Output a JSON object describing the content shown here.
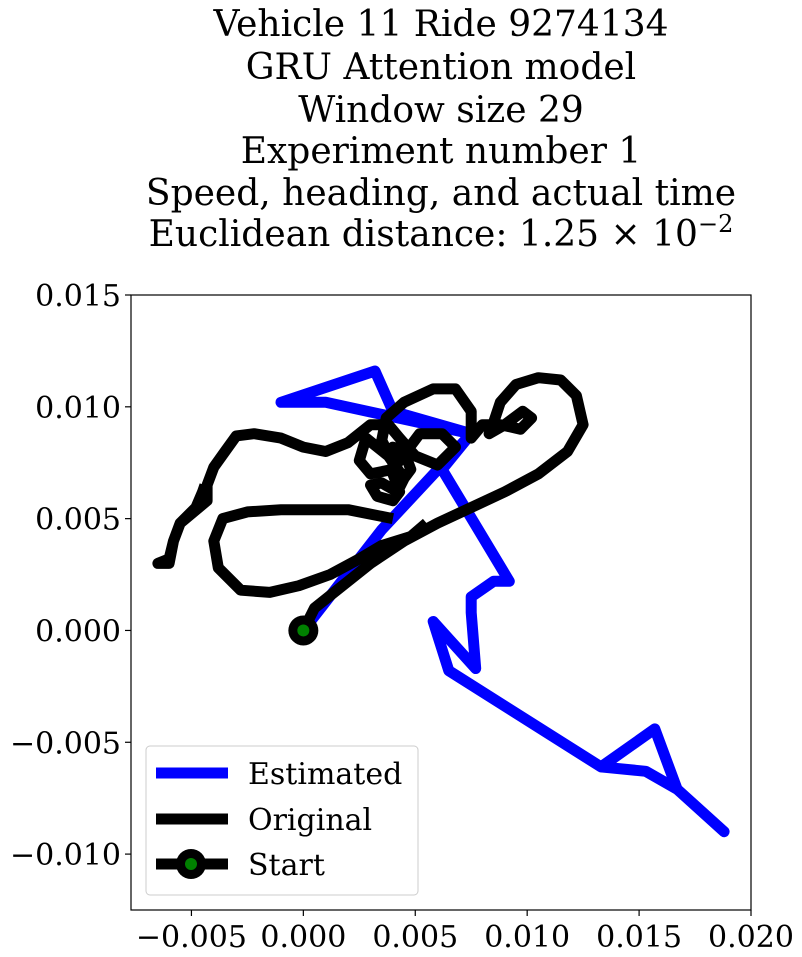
{
  "chart_data": {
    "type": "line",
    "title_lines": [
      "Vehicle 11 Ride 9274134",
      "GRU Attention model",
      "Window size 29",
      "Experiment number 1",
      "Speed, heading, and actual time",
      "Euclidean distance: 1.25 × 10"
    ],
    "title_exponent": "−2",
    "xlabel": "",
    "ylabel": "",
    "xlim": [
      -0.0077,
      0.02
    ],
    "ylim": [
      -0.0125,
      0.015
    ],
    "x_ticks": [
      -0.005,
      0.0,
      0.005,
      0.01,
      0.015,
      0.02
    ],
    "x_tick_labels": [
      "−0.005",
      "0.000",
      "0.005",
      "0.010",
      "0.015",
      "0.020"
    ],
    "y_ticks": [
      -0.01,
      -0.005,
      0.0,
      0.005,
      0.01,
      0.015
    ],
    "y_tick_labels": [
      "−0.010",
      "−0.005",
      "0.000",
      "0.005",
      "0.010",
      "0.015"
    ],
    "grid": false,
    "legend_position": "bottom-left",
    "series": [
      {
        "name": "Estimated",
        "color": "#0000ff",
        "points": [
          [
            0.0,
            0.0
          ],
          [
            0.0035,
            0.0045
          ],
          [
            0.0075,
            0.0088
          ],
          [
            0.001,
            0.0102
          ],
          [
            -0.001,
            0.0102
          ],
          [
            0.0032,
            0.0116
          ],
          [
            0.004,
            0.0098
          ],
          [
            0.0075,
            0.0088
          ],
          [
            0.0062,
            0.0072
          ],
          [
            0.0092,
            0.0022
          ],
          [
            0.0085,
            0.0022
          ],
          [
            0.0075,
            0.0015
          ],
          [
            0.0075,
            0.0008
          ],
          [
            0.0077,
            -0.0017
          ],
          [
            0.0058,
            0.0004
          ],
          [
            0.0065,
            -0.0018
          ],
          [
            0.0133,
            -0.0061
          ],
          [
            0.0157,
            -0.0044
          ],
          [
            0.0167,
            -0.0071
          ],
          [
            0.0188,
            -0.009
          ],
          [
            0.0167,
            -0.0071
          ],
          [
            0.0153,
            -0.0063
          ],
          [
            0.0133,
            -0.0061
          ]
        ]
      },
      {
        "name": "Original",
        "color": "#000000",
        "points": [
          [
            0.0,
            0.0
          ],
          [
            0.0005,
            0.001
          ],
          [
            0.0015,
            0.0018
          ],
          [
            0.003,
            0.003
          ],
          [
            0.0045,
            0.004
          ],
          [
            0.006,
            0.0048
          ],
          [
            0.0075,
            0.0055
          ],
          [
            0.009,
            0.0062
          ],
          [
            0.0105,
            0.007
          ],
          [
            0.0118,
            0.008
          ],
          [
            0.0125,
            0.0092
          ],
          [
            0.0122,
            0.0105
          ],
          [
            0.0115,
            0.0112
          ],
          [
            0.0105,
            0.0113
          ],
          [
            0.0095,
            0.011
          ],
          [
            0.0088,
            0.0102
          ],
          [
            0.0085,
            0.0093
          ],
          [
            0.0083,
            0.0088
          ],
          [
            0.009,
            0.0092
          ],
          [
            0.0098,
            0.0098
          ],
          [
            0.0102,
            0.0095
          ],
          [
            0.0097,
            0.009
          ],
          [
            0.0088,
            0.0092
          ],
          [
            0.008,
            0.0092
          ],
          [
            0.0075,
            0.0086
          ],
          [
            0.0075,
            0.0098
          ],
          [
            0.0068,
            0.0108
          ],
          [
            0.0058,
            0.0108
          ],
          [
            0.0045,
            0.0102
          ],
          [
            0.0037,
            0.0095
          ],
          [
            0.0035,
            0.0085
          ],
          [
            0.004,
            0.0075
          ],
          [
            0.0045,
            0.0068
          ],
          [
            0.0048,
            0.0072
          ],
          [
            0.0045,
            0.008
          ],
          [
            0.004,
            0.0082
          ],
          [
            0.004,
            0.007
          ],
          [
            0.0043,
            0.0062
          ],
          [
            0.004,
            0.0058
          ],
          [
            0.0033,
            0.006
          ],
          [
            0.003,
            0.0065
          ],
          [
            0.0035,
            0.0066
          ],
          [
            0.0042,
            0.0062
          ],
          [
            0.0045,
            0.0068
          ],
          [
            0.0038,
            0.0078
          ],
          [
            0.0028,
            0.0086
          ],
          [
            0.0025,
            0.0076
          ],
          [
            0.003,
            0.007
          ],
          [
            0.004,
            0.0072
          ],
          [
            0.0052,
            0.0088
          ],
          [
            0.0062,
            0.0088
          ],
          [
            0.0068,
            0.0082
          ],
          [
            0.006,
            0.0074
          ],
          [
            0.005,
            0.0078
          ],
          [
            0.0043,
            0.0086
          ],
          [
            0.0038,
            0.0092
          ],
          [
            0.003,
            0.0092
          ],
          [
            0.002,
            0.0084
          ],
          [
            0.001,
            0.008
          ],
          [
            0.0,
            0.0082
          ],
          [
            -0.001,
            0.0086
          ],
          [
            -0.0022,
            0.0088
          ],
          [
            -0.003,
            0.0087
          ],
          [
            -0.0035,
            0.008
          ],
          [
            -0.004,
            0.0073
          ],
          [
            -0.0043,
            0.0065
          ],
          [
            -0.0043,
            0.0058
          ],
          [
            -0.0055,
            0.0048
          ],
          [
            -0.0058,
            0.004
          ],
          [
            -0.006,
            0.0032
          ],
          [
            -0.0065,
            0.003
          ],
          [
            -0.006,
            0.003
          ],
          [
            -0.0058,
            0.004
          ],
          [
            -0.0055,
            0.0048
          ],
          [
            -0.0048,
            0.0055
          ],
          [
            -0.0045,
            0.0062
          ],
          [
            -0.0044,
            0.0065
          ]
        ],
        "loop_points": [
          [
            0.004,
            0.005
          ],
          [
            0.002,
            0.0054
          ],
          [
            0.0005,
            0.0054
          ],
          [
            -0.001,
            0.0054
          ],
          [
            -0.0025,
            0.0053
          ],
          [
            -0.0036,
            0.005
          ],
          [
            -0.004,
            0.004
          ],
          [
            -0.0038,
            0.0028
          ],
          [
            -0.0028,
            0.0018
          ],
          [
            -0.0015,
            0.0017
          ],
          [
            -0.0002,
            0.002
          ],
          [
            0.0012,
            0.0025
          ],
          [
            0.0025,
            0.0032
          ],
          [
            0.0035,
            0.0038
          ],
          [
            0.0048,
            0.0042
          ],
          [
            0.0055,
            0.0048
          ]
        ]
      }
    ],
    "start": {
      "name": "Start",
      "x": 0.0,
      "y": 0.0,
      "fill": "#008000",
      "edge": "#000000"
    }
  },
  "legend": {
    "items": [
      {
        "label": "Estimated",
        "color": "#0000ff",
        "marker": false
      },
      {
        "label": "Original",
        "color": "#000000",
        "marker": false
      },
      {
        "label": "Start",
        "color": "#000000",
        "marker": true,
        "marker_fill": "#008000"
      }
    ]
  }
}
